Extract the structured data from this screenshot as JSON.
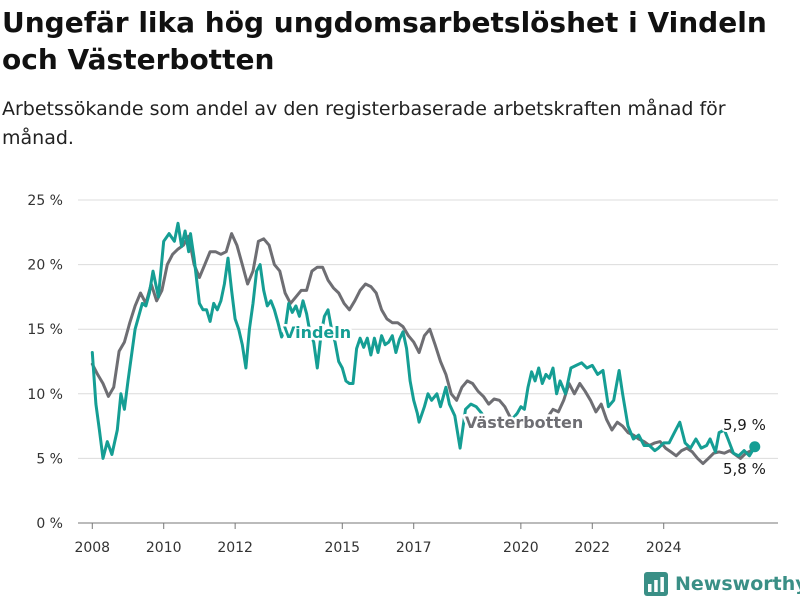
{
  "chart_data": {
    "type": "line",
    "title": "Ungefär lika hög ungdomsarbetslöshet i Vindeln och Västerbotten",
    "subtitle": "Arbetssökande som andel av den registerbaserade arbetskraften månad för månad.",
    "xlabel": "",
    "ylabel": "",
    "ylim": [
      0,
      25
    ],
    "yticks": [
      0,
      5,
      10,
      15,
      20,
      25
    ],
    "ytick_labels": [
      "0 %",
      "5 %",
      "10 %",
      "15 %",
      "20 %",
      "25 %"
    ],
    "xticks": [
      2008,
      2010,
      2012,
      2015,
      2017,
      2020,
      2022,
      2024
    ],
    "xtick_labels": [
      "2008",
      "2010",
      "2012",
      "2015",
      "2017",
      "2020",
      "2022",
      "2024"
    ],
    "grid": true,
    "legend": "none (inline series labels)",
    "series": [
      {
        "name": "Vindeln",
        "color": "#159e94",
        "end_label": "5,9 %",
        "points": [
          [
            2008.0,
            13.2
          ],
          [
            2008.1,
            9.2
          ],
          [
            2008.2,
            7.2
          ],
          [
            2008.3,
            5.0
          ],
          [
            2008.42,
            6.3
          ],
          [
            2008.55,
            5.3
          ],
          [
            2008.7,
            7.2
          ],
          [
            2008.8,
            10.0
          ],
          [
            2008.9,
            8.8
          ],
          [
            2009.0,
            11.0
          ],
          [
            2009.2,
            15.0
          ],
          [
            2009.4,
            17.0
          ],
          [
            2009.5,
            16.8
          ],
          [
            2009.6,
            17.8
          ],
          [
            2009.7,
            19.5
          ],
          [
            2009.85,
            17.5
          ],
          [
            2010.0,
            21.8
          ],
          [
            2010.15,
            22.4
          ],
          [
            2010.3,
            21.8
          ],
          [
            2010.4,
            23.2
          ],
          [
            2010.5,
            21.4
          ],
          [
            2010.6,
            22.6
          ],
          [
            2010.7,
            21.0
          ],
          [
            2010.75,
            22.4
          ],
          [
            2010.85,
            20.5
          ],
          [
            2011.0,
            17.0
          ],
          [
            2011.1,
            16.5
          ],
          [
            2011.2,
            16.5
          ],
          [
            2011.3,
            15.6
          ],
          [
            2011.4,
            17.0
          ],
          [
            2011.5,
            16.5
          ],
          [
            2011.6,
            17.2
          ],
          [
            2011.7,
            18.5
          ],
          [
            2011.8,
            20.5
          ],
          [
            2011.9,
            18.0
          ],
          [
            2012.0,
            15.8
          ],
          [
            2012.1,
            15.0
          ],
          [
            2012.2,
            13.8
          ],
          [
            2012.3,
            12.0
          ],
          [
            2012.4,
            15.0
          ],
          [
            2012.5,
            17.0
          ],
          [
            2012.6,
            19.5
          ],
          [
            2012.7,
            20.0
          ],
          [
            2012.8,
            18.0
          ],
          [
            2012.9,
            16.8
          ],
          [
            2013.0,
            17.2
          ],
          [
            2013.1,
            16.5
          ],
          [
            2013.2,
            15.5
          ],
          [
            2013.3,
            14.4
          ],
          [
            2013.4,
            15.0
          ],
          [
            2013.5,
            17.0
          ],
          [
            2013.6,
            16.3
          ],
          [
            2013.7,
            16.8
          ],
          [
            2013.8,
            16.0
          ],
          [
            2013.9,
            17.2
          ],
          [
            2014.0,
            16.2
          ],
          [
            2014.1,
            14.7
          ],
          [
            2014.2,
            14.0
          ],
          [
            2014.3,
            12.0
          ],
          [
            2014.4,
            14.5
          ],
          [
            2014.5,
            16.0
          ],
          [
            2014.6,
            16.5
          ],
          [
            2014.7,
            15.0
          ],
          [
            2014.8,
            14.0
          ],
          [
            2014.9,
            12.5
          ],
          [
            2015.0,
            12.0
          ],
          [
            2015.1,
            11.0
          ],
          [
            2015.2,
            10.8
          ],
          [
            2015.3,
            10.8
          ],
          [
            2015.4,
            13.5
          ],
          [
            2015.5,
            14.3
          ],
          [
            2015.6,
            13.6
          ],
          [
            2015.7,
            14.3
          ],
          [
            2015.8,
            13.0
          ],
          [
            2015.9,
            14.3
          ],
          [
            2016.0,
            13.2
          ],
          [
            2016.1,
            14.5
          ],
          [
            2016.2,
            13.8
          ],
          [
            2016.3,
            14.0
          ],
          [
            2016.4,
            14.5
          ],
          [
            2016.5,
            13.2
          ],
          [
            2016.6,
            14.2
          ],
          [
            2016.7,
            14.8
          ],
          [
            2016.8,
            13.5
          ],
          [
            2016.9,
            11.0
          ],
          [
            2017.0,
            9.5
          ],
          [
            2017.1,
            8.5
          ],
          [
            2017.15,
            7.8
          ],
          [
            2017.3,
            9.0
          ],
          [
            2017.4,
            10.0
          ],
          [
            2017.5,
            9.5
          ],
          [
            2017.65,
            10.0
          ],
          [
            2017.75,
            9.0
          ],
          [
            2017.9,
            10.5
          ],
          [
            2018.0,
            9.2
          ],
          [
            2018.15,
            8.3
          ],
          [
            2018.3,
            5.8
          ],
          [
            2018.45,
            8.8
          ],
          [
            2018.6,
            9.2
          ],
          [
            2018.75,
            9.0
          ],
          [
            2018.9,
            8.5
          ],
          [
            2019.05,
            7.9
          ],
          [
            2019.2,
            8.0
          ],
          [
            2019.35,
            7.5
          ],
          [
            2019.5,
            7.8
          ],
          [
            2019.65,
            7.8
          ],
          [
            2019.75,
            8.0
          ],
          [
            2019.9,
            8.5
          ],
          [
            2020.0,
            9.0
          ],
          [
            2020.1,
            8.8
          ],
          [
            2020.2,
            10.5
          ],
          [
            2020.3,
            11.7
          ],
          [
            2020.4,
            11.0
          ],
          [
            2020.5,
            12.0
          ],
          [
            2020.6,
            10.8
          ],
          [
            2020.7,
            11.5
          ],
          [
            2020.8,
            11.2
          ],
          [
            2020.9,
            12.0
          ],
          [
            2021.0,
            10.0
          ],
          [
            2021.1,
            11.0
          ],
          [
            2021.25,
            10.0
          ],
          [
            2021.4,
            12.0
          ],
          [
            2021.55,
            12.2
          ],
          [
            2021.7,
            12.4
          ],
          [
            2021.85,
            12.0
          ],
          [
            2022.0,
            12.2
          ],
          [
            2022.15,
            11.5
          ],
          [
            2022.3,
            11.8
          ],
          [
            2022.45,
            9.0
          ],
          [
            2022.6,
            9.5
          ],
          [
            2022.75,
            11.8
          ],
          [
            2022.85,
            10.0
          ],
          [
            2023.0,
            7.5
          ],
          [
            2023.15,
            6.5
          ],
          [
            2023.3,
            6.8
          ],
          [
            2023.45,
            6.0
          ],
          [
            2023.6,
            6.0
          ],
          [
            2023.75,
            5.6
          ],
          [
            2023.85,
            5.8
          ],
          [
            2024.0,
            6.2
          ],
          [
            2024.15,
            6.2
          ],
          [
            2024.3,
            7.0
          ],
          [
            2024.45,
            7.8
          ],
          [
            2024.6,
            6.2
          ],
          [
            2024.75,
            5.8
          ],
          [
            2024.9,
            6.5
          ],
          [
            2025.05,
            5.8
          ],
          [
            2025.2,
            6.0
          ],
          [
            2025.3,
            6.5
          ],
          [
            2025.45,
            5.5
          ],
          [
            2025.55,
            7.0
          ],
          [
            2025.7,
            7.2
          ],
          [
            2025.8,
            6.5
          ],
          [
            2025.95,
            5.4
          ],
          [
            2026.1,
            5.2
          ],
          [
            2026.25,
            5.6
          ],
          [
            2026.4,
            5.2
          ],
          [
            2026.55,
            5.9
          ]
        ]
      },
      {
        "name": "Västerbotten",
        "color": "#6e6e73",
        "end_label": "5,8 %",
        "points": [
          [
            2008.0,
            12.3
          ],
          [
            2008.15,
            11.5
          ],
          [
            2008.3,
            10.8
          ],
          [
            2008.45,
            9.8
          ],
          [
            2008.6,
            10.5
          ],
          [
            2008.75,
            13.3
          ],
          [
            2008.9,
            14.0
          ],
          [
            2009.05,
            15.5
          ],
          [
            2009.2,
            16.8
          ],
          [
            2009.35,
            17.8
          ],
          [
            2009.5,
            17.0
          ],
          [
            2009.65,
            18.5
          ],
          [
            2009.8,
            17.2
          ],
          [
            2009.95,
            18.0
          ],
          [
            2010.1,
            20.0
          ],
          [
            2010.25,
            20.8
          ],
          [
            2010.4,
            21.2
          ],
          [
            2010.55,
            21.5
          ],
          [
            2010.7,
            22.2
          ],
          [
            2010.85,
            20.0
          ],
          [
            2011.0,
            19.0
          ],
          [
            2011.15,
            20.0
          ],
          [
            2011.3,
            21.0
          ],
          [
            2011.45,
            21.0
          ],
          [
            2011.6,
            20.8
          ],
          [
            2011.75,
            21.0
          ],
          [
            2011.9,
            22.4
          ],
          [
            2012.05,
            21.5
          ],
          [
            2012.2,
            20.0
          ],
          [
            2012.35,
            18.5
          ],
          [
            2012.5,
            19.5
          ],
          [
            2012.65,
            21.8
          ],
          [
            2012.8,
            22.0
          ],
          [
            2012.95,
            21.5
          ],
          [
            2013.1,
            20.0
          ],
          [
            2013.25,
            19.5
          ],
          [
            2013.4,
            17.8
          ],
          [
            2013.55,
            17.0
          ],
          [
            2013.7,
            17.5
          ],
          [
            2013.85,
            18.0
          ],
          [
            2014.0,
            18.0
          ],
          [
            2014.15,
            19.5
          ],
          [
            2014.3,
            19.8
          ],
          [
            2014.45,
            19.8
          ],
          [
            2014.6,
            18.8
          ],
          [
            2014.75,
            18.2
          ],
          [
            2014.9,
            17.8
          ],
          [
            2015.05,
            17.0
          ],
          [
            2015.2,
            16.5
          ],
          [
            2015.35,
            17.2
          ],
          [
            2015.5,
            18.0
          ],
          [
            2015.65,
            18.5
          ],
          [
            2015.8,
            18.3
          ],
          [
            2015.95,
            17.8
          ],
          [
            2016.1,
            16.5
          ],
          [
            2016.25,
            15.8
          ],
          [
            2016.4,
            15.5
          ],
          [
            2016.55,
            15.5
          ],
          [
            2016.7,
            15.2
          ],
          [
            2016.85,
            14.5
          ],
          [
            2017.0,
            14.0
          ],
          [
            2017.15,
            13.2
          ],
          [
            2017.3,
            14.5
          ],
          [
            2017.45,
            15.0
          ],
          [
            2017.6,
            13.8
          ],
          [
            2017.75,
            12.5
          ],
          [
            2017.9,
            11.5
          ],
          [
            2018.05,
            10.0
          ],
          [
            2018.2,
            9.5
          ],
          [
            2018.35,
            10.5
          ],
          [
            2018.5,
            11.0
          ],
          [
            2018.65,
            10.8
          ],
          [
            2018.8,
            10.2
          ],
          [
            2018.95,
            9.8
          ],
          [
            2019.1,
            9.2
          ],
          [
            2019.25,
            9.6
          ],
          [
            2019.4,
            9.5
          ],
          [
            2019.55,
            9.0
          ],
          [
            2019.7,
            8.2
          ],
          [
            2019.85,
            7.8
          ],
          [
            2020.0,
            7.5
          ],
          [
            2020.15,
            8.0
          ],
          [
            2020.3,
            7.6
          ],
          [
            2020.45,
            7.4
          ],
          [
            2020.6,
            7.8
          ],
          [
            2020.75,
            8.2
          ],
          [
            2020.9,
            8.8
          ],
          [
            2021.05,
            8.6
          ],
          [
            2021.2,
            9.5
          ],
          [
            2021.35,
            10.8
          ],
          [
            2021.5,
            10.0
          ],
          [
            2021.65,
            10.8
          ],
          [
            2021.8,
            10.2
          ],
          [
            2021.95,
            9.5
          ],
          [
            2022.1,
            8.6
          ],
          [
            2022.25,
            9.2
          ],
          [
            2022.4,
            8.0
          ],
          [
            2022.55,
            7.2
          ],
          [
            2022.7,
            7.8
          ],
          [
            2022.85,
            7.5
          ],
          [
            2023.0,
            7.0
          ],
          [
            2023.15,
            6.8
          ],
          [
            2023.3,
            6.5
          ],
          [
            2023.45,
            6.3
          ],
          [
            2023.6,
            6.0
          ],
          [
            2023.75,
            6.2
          ],
          [
            2023.9,
            6.3
          ],
          [
            2024.05,
            5.8
          ],
          [
            2024.2,
            5.5
          ],
          [
            2024.35,
            5.2
          ],
          [
            2024.5,
            5.6
          ],
          [
            2024.65,
            5.8
          ],
          [
            2024.8,
            5.5
          ],
          [
            2024.95,
            5.0
          ],
          [
            2025.1,
            4.6
          ],
          [
            2025.25,
            5.0
          ],
          [
            2025.4,
            5.4
          ],
          [
            2025.55,
            5.5
          ],
          [
            2025.7,
            5.4
          ],
          [
            2025.85,
            5.6
          ],
          [
            2026.0,
            5.3
          ],
          [
            2026.15,
            5.0
          ],
          [
            2026.3,
            5.4
          ],
          [
            2026.45,
            5.6
          ],
          [
            2026.55,
            5.8
          ]
        ]
      }
    ]
  },
  "brand": {
    "name": "Newsworthy",
    "icon": "bar-chart-logo-icon",
    "color": "#3a8f86"
  }
}
